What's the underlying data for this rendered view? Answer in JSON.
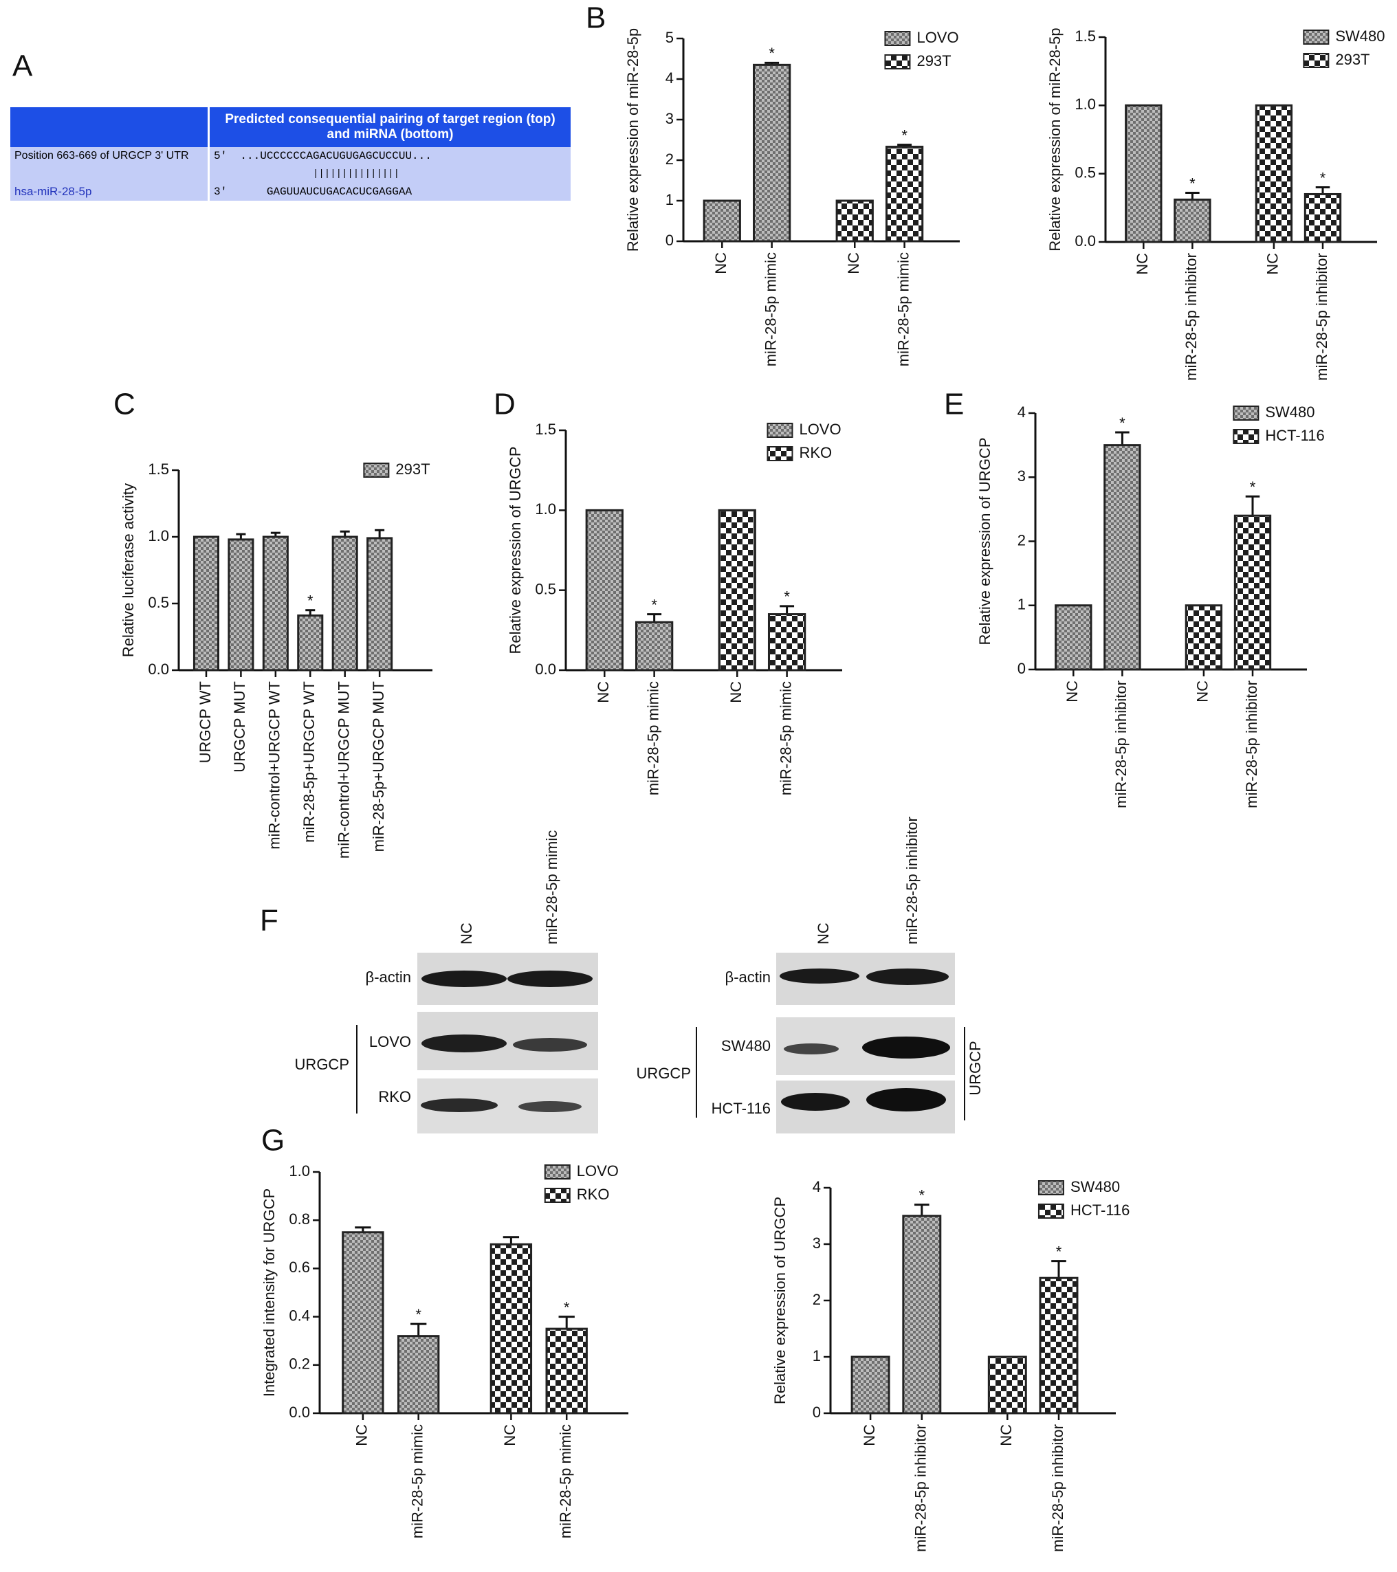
{
  "panels": [
    "A",
    "B",
    "C",
    "D",
    "E",
    "F",
    "G"
  ],
  "alignment": {
    "header": "Predicted consequential pairing of target region (top) and miRNA (bottom)",
    "target_label": "Position 663-669 of URGCP 3' UTR",
    "target_end": "5'",
    "target_seq": "...UCCCCCCAGACUGUGAGCUCCUU...",
    "pairing": "|||||||||||||||",
    "mirna_label": "hsa-miR-28-5p",
    "mirna_end": "3'",
    "mirna_seq": "GAGUUAUCUGACACUCGAGGAA"
  },
  "western_blot": [
    {
      "lanes": [
        "NC",
        "miR-28-5p mimic"
      ],
      "loading_control": "β-actin",
      "protein": "URGCP",
      "cell_lines": [
        "LOVO",
        "RKO"
      ]
    },
    {
      "lanes": [
        "NC",
        "miR-28-5p inhibitor"
      ],
      "loading_control": "β-actin",
      "protein": "URGCP",
      "cell_lines": [
        "SW480",
        "HCT-116"
      ]
    }
  ],
  "chart_data": [
    {
      "type": "bar",
      "ylabel": "Relative expression of miR-28-5p",
      "categories": [
        "NC",
        "miR-28-5p mimic",
        "NC",
        "miR-28-5p mimic"
      ],
      "series": [
        {
          "name": "LOVO",
          "color": "#6e6e6e",
          "values": [
            1,
            4.35,
            null,
            null
          ],
          "errors": [
            null,
            0.05,
            null,
            null
          ],
          "significance": [
            null,
            "*",
            null,
            null
          ]
        },
        {
          "name": "293T",
          "color": "#1e1e1e",
          "values": [
            null,
            null,
            1,
            2.33
          ],
          "errors": [
            null,
            null,
            null,
            0.05
          ],
          "significance": [
            null,
            null,
            null,
            "*"
          ]
        }
      ],
      "ylim": [
        0,
        5
      ],
      "yticks": [
        0,
        1,
        2,
        3,
        4,
        5
      ],
      "legend": "upper right"
    },
    {
      "type": "bar",
      "ylabel": "Relative expression of miR-28-5p",
      "categories": [
        "NC",
        "miR-28-5p inhibitor",
        "NC",
        "miR-28-5p inhibitor"
      ],
      "series": [
        {
          "name": "SW480",
          "color": "#6e6e6e",
          "values": [
            1,
            0.31,
            null,
            null
          ],
          "errors": [
            null,
            0.05,
            null,
            null
          ],
          "significance": [
            null,
            "*",
            null,
            null
          ]
        },
        {
          "name": "293T",
          "color": "#1e1e1e",
          "values": [
            null,
            null,
            1,
            0.35
          ],
          "errors": [
            null,
            null,
            null,
            0.05
          ],
          "significance": [
            null,
            null,
            null,
            "*"
          ]
        }
      ],
      "ylim": [
        0,
        1.5
      ],
      "yticks": [
        {
          "value": 0,
          "label": "0.0"
        },
        0.5,
        {
          "value": 1,
          "label": "1.0"
        },
        1.5
      ],
      "legend": "upper right"
    },
    {
      "type": "bar",
      "ylabel": "Relative luciferase activity",
      "categories": [
        "URGCP WT",
        "URGCP MUT",
        "miR-control+URGCP WT",
        "miR-28-5p+URGCP WT",
        "miR-control+URGCP MUT",
        "miR-28-5p+URGCP MUT"
      ],
      "series": [
        {
          "name": "293T",
          "color": "#6e6e6e",
          "values": [
            1,
            0.98,
            1,
            0.41,
            1,
            0.99
          ],
          "errors": [
            null,
            0.04,
            0.03,
            0.04,
            0.04,
            0.06
          ],
          "significance": [
            null,
            null,
            null,
            "*",
            null,
            null
          ]
        }
      ],
      "ylim": [
        0,
        1.5
      ],
      "yticks": [
        {
          "value": 0,
          "label": "0.0"
        },
        0.5,
        {
          "value": 1,
          "label": "1.0"
        },
        1.5
      ],
      "legend": "upper right"
    },
    {
      "type": "bar",
      "ylabel": "Relative expression of URGCP",
      "categories": [
        "NC",
        "miR-28-5p mimic",
        "NC",
        "miR-28-5p mimic"
      ],
      "series": [
        {
          "name": "LOVO",
          "color": "#6e6e6e",
          "values": [
            1,
            0.3,
            null,
            null
          ],
          "errors": [
            null,
            0.05,
            null,
            null
          ],
          "significance": [
            null,
            "*",
            null,
            null
          ]
        },
        {
          "name": "RKO",
          "color": "#1e1e1e",
          "values": [
            null,
            null,
            1,
            0.35
          ],
          "errors": [
            null,
            null,
            null,
            0.05
          ],
          "significance": [
            null,
            null,
            null,
            "*"
          ]
        }
      ],
      "ylim": [
        0,
        1.5
      ],
      "yticks": [
        {
          "value": 0,
          "label": "0.0"
        },
        0.5,
        {
          "value": 1,
          "label": "1.0"
        },
        1.5
      ],
      "legend": "upper right"
    },
    {
      "type": "bar",
      "ylabel": "Relative expression of URGCP",
      "categories": [
        "NC",
        "miR-28-5p inhibitor",
        "NC",
        "miR-28-5p inhibitor"
      ],
      "series": [
        {
          "name": "SW480",
          "color": "#6e6e6e",
          "values": [
            1,
            3.5,
            null,
            null
          ],
          "errors": [
            null,
            0.2,
            null,
            null
          ],
          "significance": [
            null,
            "*",
            null,
            null
          ]
        },
        {
          "name": "HCT-116",
          "color": "#1e1e1e",
          "values": [
            null,
            null,
            1,
            2.4
          ],
          "errors": [
            null,
            null,
            null,
            0.3
          ],
          "significance": [
            null,
            null,
            null,
            "*"
          ]
        }
      ],
      "ylim": [
        0,
        4
      ],
      "yticks": [
        0,
        1,
        2,
        3,
        4
      ],
      "legend": "upper right"
    },
    {
      "type": "bar",
      "ylabel": "Integrated intensity for URGCP",
      "categories": [
        "NC",
        "miR-28-5p mimic",
        "NC",
        "miR-28-5p mimic"
      ],
      "series": [
        {
          "name": "LOVO",
          "color": "#6e6e6e",
          "values": [
            0.75,
            0.32,
            null,
            null
          ],
          "errors": [
            0.02,
            0.05,
            null,
            null
          ],
          "significance": [
            null,
            "*",
            null,
            null
          ]
        },
        {
          "name": "RKO",
          "color": "#1e1e1e",
          "values": [
            null,
            null,
            0.7,
            0.35
          ],
          "errors": [
            null,
            null,
            0.03,
            0.05
          ],
          "significance": [
            null,
            null,
            null,
            "*"
          ]
        }
      ],
      "ylim": [
        0,
        1
      ],
      "yticks": [
        {
          "value": 0,
          "label": "0.0"
        },
        0.2,
        0.4,
        0.6,
        0.8,
        {
          "value": 1,
          "label": "1.0"
        }
      ],
      "legend": "upper right"
    },
    {
      "type": "bar",
      "ylabel": "Relative expression of URGCP",
      "categories": [
        "NC",
        "miR-28-5p inhibitor",
        "NC",
        "miR-28-5p inhibitor"
      ],
      "series": [
        {
          "name": "SW480",
          "color": "#6e6e6e",
          "values": [
            1,
            3.5,
            null,
            null
          ],
          "errors": [
            null,
            0.2,
            null,
            null
          ],
          "significance": [
            null,
            "*",
            null,
            null
          ]
        },
        {
          "name": "HCT-116",
          "color": "#1e1e1e",
          "values": [
            null,
            null,
            1,
            2.4
          ],
          "errors": [
            null,
            null,
            null,
            0.3
          ],
          "significance": [
            null,
            null,
            null,
            "*"
          ]
        }
      ],
      "ylim": [
        0,
        4
      ],
      "yticks": [
        0,
        1,
        2,
        3,
        4
      ],
      "legend": "upper right"
    }
  ]
}
